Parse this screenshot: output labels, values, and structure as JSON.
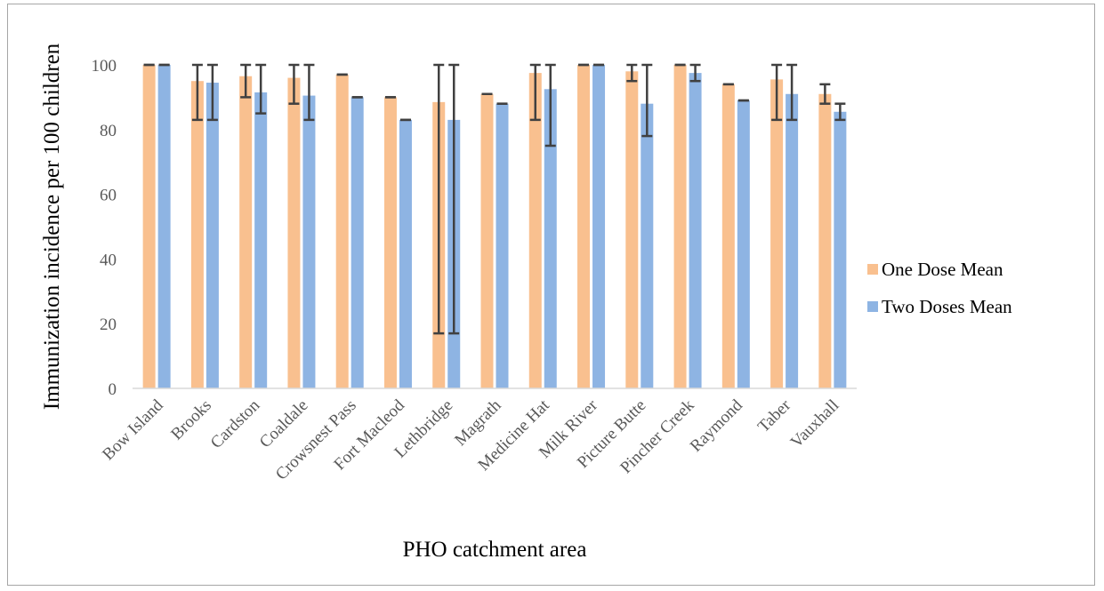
{
  "chart_data": {
    "type": "bar",
    "title": "",
    "xlabel": "PHO catchment area",
    "ylabel": "Immunization incidence per 100 children",
    "ylim": [
      0,
      100
    ],
    "yticks": [
      0,
      20,
      40,
      60,
      80,
      100
    ],
    "grid": false,
    "legend_position": "right",
    "error_bars": true,
    "categories": [
      "Bow Island",
      "Brooks",
      "Cardston",
      "Coaldale",
      "Crowsnest Pass",
      "Fort Macleod",
      "Lethbridge",
      "Magrath",
      "Medicine Hat",
      "Milk River",
      "Picture Butte",
      "Pincher Creek",
      "Raymond",
      "Taber",
      "Vauxhall"
    ],
    "series": [
      {
        "name": "One Dose Mean",
        "color": "#f9c08f",
        "values": [
          100,
          95,
          96.5,
          96,
          97,
          90,
          88.5,
          91,
          97.5,
          100,
          98,
          100,
          94,
          95.5,
          91
        ],
        "err_low": [
          100,
          83,
          90,
          88,
          97,
          90,
          17,
          91,
          83,
          100,
          95,
          100,
          94,
          83,
          88
        ],
        "err_high": [
          100,
          100,
          100,
          100,
          97,
          90,
          100,
          91,
          100,
          100,
          100,
          100,
          94,
          100,
          94
        ]
      },
      {
        "name": "Two Doses Mean",
        "color": "#8eb4e3",
        "values": [
          100,
          94.5,
          91.5,
          90.5,
          90,
          83,
          83,
          88,
          92.5,
          100,
          88,
          97.5,
          89,
          91,
          85.5
        ],
        "err_low": [
          100,
          83,
          85,
          83,
          90,
          83,
          17,
          88,
          75,
          100,
          78,
          95,
          89,
          83,
          83
        ],
        "err_high": [
          100,
          100,
          100,
          100,
          90,
          83,
          100,
          88,
          100,
          100,
          100,
          100,
          89,
          100,
          88
        ]
      }
    ]
  }
}
